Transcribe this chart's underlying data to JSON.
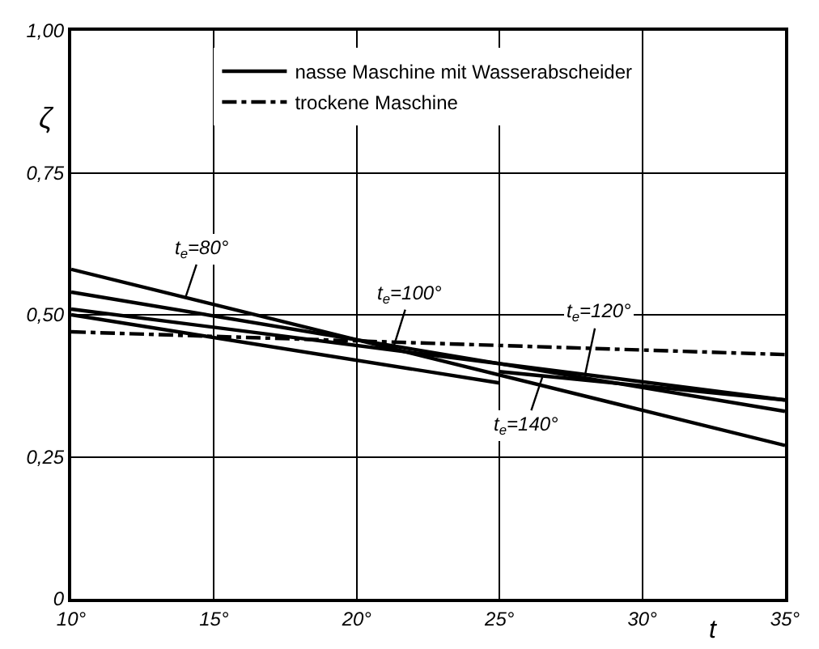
{
  "chart_data": {
    "type": "line",
    "xlabel": "t",
    "ylabel": "ζ",
    "xlim": [
      10,
      35
    ],
    "ylim": [
      0,
      1
    ],
    "xticks": [
      {
        "value": 10,
        "label": "10°"
      },
      {
        "value": 15,
        "label": "15°"
      },
      {
        "value": 20,
        "label": "20°"
      },
      {
        "value": 25,
        "label": "25°"
      },
      {
        "value": 30,
        "label": "30°"
      },
      {
        "value": 35,
        "label": "35°"
      }
    ],
    "yticks": [
      0,
      {
        "value": 0.25,
        "label": "0,25"
      },
      {
        "value": 0.5,
        "label": "0,50"
      },
      {
        "value": 0.75,
        "label": "0,75"
      },
      {
        "value": 1,
        "label": "1,00"
      }
    ],
    "grid": true,
    "legend": "top",
    "marker": "none",
    "series": [
      {
        "name": "nasse Maschine mit Wasserabscheider",
        "color": "#000000",
        "line_style": "solid",
        "x": [
          10,
          35
        ],
        "values": [
          0.58,
          0.27
        ]
      },
      {
        "color": "#000000",
        "line_style": "solid",
        "x": [
          10,
          35
        ],
        "values": [
          0.54,
          0.33
        ]
      },
      {
        "color": "#000000",
        "line_style": "solid",
        "x": [
          10,
          35
        ],
        "values": [
          0.51,
          0.35
        ]
      },
      {
        "color": "#000000",
        "line_style": "solid",
        "x": [
          10,
          25
        ],
        "values": [
          0.5,
          0.38
        ]
      },
      {
        "color": "#000000",
        "line_style": "solid",
        "x": [
          25,
          35
        ],
        "values": [
          0.4,
          0.35
        ]
      },
      {
        "name": "trockene Maschine",
        "color": "#000000",
        "line_style": "dashdot",
        "x": [
          10,
          35
        ],
        "values": [
          0.47,
          0.43
        ]
      }
    ],
    "annotations": [
      {
        "text": "t$_{e}$=80°",
        "x": 14,
        "y": 0.53
      },
      {
        "text": "t$_{e}$=100°",
        "x": 21.3,
        "y": 0.445
      },
      {
        "text": "t$_{e}$=120°",
        "x": 28,
        "y": 0.395
      },
      {
        "text": "t$_{e}$=140°",
        "x": 26.5,
        "y": 0.39
      }
    ]
  }
}
